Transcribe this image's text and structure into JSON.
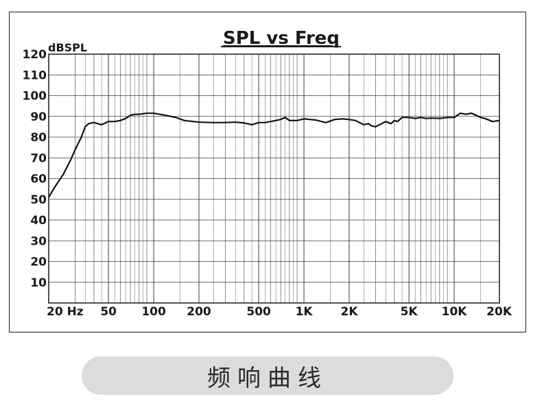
{
  "chart_data": {
    "type": "line",
    "title": "SPL vs Freq",
    "ylabel": "dBSPL",
    "xscale": "log",
    "xlim": [
      20,
      20000
    ],
    "ylim": [
      0,
      120
    ],
    "grid": true,
    "x_tick_labels": [
      "20 Hz",
      "50",
      "100",
      "200",
      "500",
      "1K",
      "2K",
      "5K",
      "10K",
      "20K"
    ],
    "x_tick_values": [
      20,
      50,
      100,
      200,
      500,
      1000,
      2000,
      5000,
      10000,
      20000
    ],
    "y_tick_labels": [
      "120",
      "110",
      "100",
      "90",
      "80",
      "70",
      "60",
      "50",
      "40",
      "30",
      "20",
      "10"
    ],
    "y_tick_values": [
      120,
      110,
      100,
      90,
      80,
      70,
      60,
      50,
      40,
      30,
      20,
      10
    ],
    "series": [
      {
        "x": [
          20,
          22,
          25,
          28,
          30,
          33,
          35,
          37,
          40,
          45,
          50,
          55,
          60,
          65,
          70,
          75,
          80,
          90,
          100,
          110,
          120,
          140,
          160,
          200,
          250,
          300,
          350,
          400,
          450,
          500,
          550,
          600,
          700,
          750,
          800,
          900,
          1000,
          1100,
          1200,
          1400,
          1600,
          1800,
          2000,
          2200,
          2500,
          2700,
          2800,
          3000,
          3200,
          3500,
          3800,
          4000,
          4200,
          4500,
          5000,
          5500,
          6000,
          6500,
          7000,
          8000,
          9000,
          10000,
          10500,
          11000,
          12000,
          13000,
          14000,
          15000,
          16000,
          18000,
          20000
        ],
        "y": [
          51,
          56,
          62,
          69,
          74,
          80,
          85,
          86.5,
          87,
          86,
          87.5,
          87.5,
          88,
          89,
          90.5,
          91,
          91,
          91.5,
          91.5,
          91,
          90.5,
          89.5,
          88,
          87.2,
          87,
          87,
          87.2,
          86.8,
          86,
          87,
          87,
          87.5,
          88.5,
          89.5,
          88,
          88,
          88.8,
          88.5,
          88.2,
          87,
          88.5,
          88.8,
          88.5,
          88,
          86,
          86.5,
          85.5,
          85,
          86,
          87.5,
          86.5,
          88,
          87.5,
          89.5,
          89.5,
          89,
          89.5,
          89,
          89.2,
          89,
          89.5,
          89.5,
          90.5,
          91.5,
          91,
          91.5,
          90.5,
          89.5,
          89,
          87.5,
          88
        ]
      }
    ]
  },
  "caption": "频响曲线",
  "colors": {
    "grid": "#3a3a3a",
    "line": "#111111",
    "frame": "#1a1a1a",
    "caption_bg": "#dcdcdc"
  }
}
